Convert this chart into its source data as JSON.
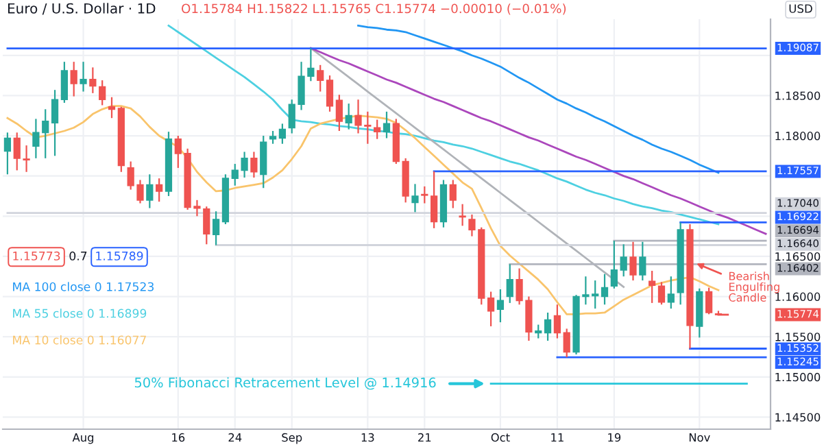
{
  "chart_data": {
    "type": "candlestick",
    "title": "Euro / U.S. Dollar · 1D",
    "categories": [
      null,
      null,
      null,
      null,
      null,
      null,
      null,
      null,
      "Aug",
      null,
      null,
      null,
      null,
      null,
      null,
      null,
      null,
      null,
      "16",
      null,
      null,
      null,
      null,
      null,
      "24",
      null,
      null,
      null,
      null,
      null,
      "Sep",
      null,
      null,
      null,
      null,
      null,
      null,
      null,
      "13",
      null,
      null,
      null,
      null,
      null,
      "21",
      null,
      null,
      null,
      null,
      null,
      null,
      null,
      "Oct",
      null,
      null,
      null,
      null,
      null,
      "11",
      null,
      null,
      null,
      null,
      null,
      "19",
      null,
      null,
      null,
      null,
      null,
      null,
      null,
      null,
      "Nov",
      null,
      null,
      null,
      null,
      null,
      null,
      null
    ],
    "ohlc": [
      [
        1.1781,
        1.1804,
        1.1752,
        1.1797
      ],
      [
        1.1797,
        1.1804,
        1.1757,
        1.1772
      ],
      [
        1.1771,
        1.1788,
        1.1755,
        1.177
      ],
      [
        1.1787,
        1.1821,
        1.1772,
        1.1804
      ],
      [
        1.1804,
        1.1833,
        1.1772,
        1.1818
      ],
      [
        1.1816,
        1.1857,
        1.1775,
        1.1845
      ],
      [
        1.1845,
        1.1892,
        1.1841,
        1.1881
      ],
      [
        1.1881,
        1.1892,
        1.1849,
        1.1865
      ],
      [
        1.1865,
        1.1892,
        1.1855,
        1.187
      ],
      [
        1.187,
        1.1885,
        1.1853,
        1.1862
      ],
      [
        1.1861,
        1.1869,
        1.1838,
        1.1845
      ],
      [
        1.1836,
        1.1848,
        1.1822,
        1.1833
      ],
      [
        1.1834,
        1.1836,
        1.1755,
        1.1763
      ],
      [
        1.176,
        1.1768,
        1.1733,
        1.1738
      ],
      [
        1.1739,
        1.1745,
        1.1716,
        1.172
      ],
      [
        1.172,
        1.1752,
        1.171,
        1.1739
      ],
      [
        1.1739,
        1.1747,
        1.1718,
        1.1731
      ],
      [
        1.1731,
        1.1805,
        1.1725,
        1.1796
      ],
      [
        1.1796,
        1.18,
        1.176,
        1.1778
      ],
      [
        1.1778,
        1.1784,
        1.1708,
        1.1711
      ],
      [
        1.1712,
        1.172,
        1.17,
        1.171
      ],
      [
        1.1709,
        1.1712,
        1.1665,
        1.1678
      ],
      [
        1.1677,
        1.1706,
        1.1664,
        1.1696
      ],
      [
        1.1693,
        1.1752,
        1.169,
        1.1747
      ],
      [
        1.1747,
        1.1765,
        1.1738,
        1.1757
      ],
      [
        1.1757,
        1.178,
        1.1748,
        1.1772
      ],
      [
        1.1772,
        1.178,
        1.1748,
        1.1755
      ],
      [
        1.1752,
        1.18,
        1.1735,
        1.1792
      ],
      [
        1.1796,
        1.1806,
        1.179,
        1.1799
      ],
      [
        1.1797,
        1.1815,
        1.179,
        1.1808
      ],
      [
        1.181,
        1.1845,
        1.1803,
        1.1839
      ],
      [
        1.1839,
        1.1892,
        1.1832,
        1.1874
      ],
      [
        1.1874,
        1.19087,
        1.1868,
        1.1884
      ],
      [
        1.1881,
        1.1888,
        1.1855,
        1.1869
      ],
      [
        1.1869,
        1.1875,
        1.183,
        1.1837
      ],
      [
        1.1844,
        1.1851,
        1.1806,
        1.1818
      ],
      [
        1.1816,
        1.184,
        1.1808,
        1.1825
      ],
      [
        1.1825,
        1.1845,
        1.1803,
        1.1813
      ],
      [
        1.1813,
        1.183,
        1.179,
        1.1812
      ],
      [
        1.181,
        1.182,
        1.1796,
        1.1805
      ],
      [
        1.1805,
        1.183,
        1.1797,
        1.1815
      ],
      [
        1.1815,
        1.1821,
        1.1765,
        1.1768
      ],
      [
        1.1768,
        1.1772,
        1.1717,
        1.1725
      ],
      [
        1.1717,
        1.174,
        1.1705,
        1.1725
      ],
      [
        1.1727,
        1.1737,
        1.1716,
        1.1726
      ],
      [
        1.1725,
        1.17557,
        1.1685,
        1.1693
      ],
      [
        1.1693,
        1.1745,
        1.1686,
        1.1739
      ],
      [
        1.1739,
        1.1745,
        1.171,
        1.172
      ],
      [
        1.17,
        1.1715,
        1.1688,
        1.1699
      ],
      [
        1.1696,
        1.1702,
        1.1675,
        1.1683
      ],
      [
        1.1683,
        1.1686,
        1.159,
        1.1598
      ],
      [
        1.1598,
        1.1606,
        1.1563,
        1.1582
      ],
      [
        1.1584,
        1.1609,
        1.1568,
        1.1595
      ],
      [
        1.16,
        1.16402,
        1.1592,
        1.1621
      ],
      [
        1.1621,
        1.1635,
        1.159,
        1.1595
      ],
      [
        1.1595,
        1.16,
        1.1545,
        1.1556
      ],
      [
        1.1555,
        1.1565,
        1.1548,
        1.1557
      ],
      [
        1.1555,
        1.158,
        1.1545,
        1.1571
      ],
      [
        1.1576,
        1.159,
        1.1548,
        1.1555
      ],
      [
        1.1555,
        1.156,
        1.15245,
        1.1531
      ],
      [
        1.1531,
        1.1602,
        1.1528,
        1.16
      ],
      [
        1.16,
        1.1625,
        1.159,
        1.1602
      ],
      [
        1.1601,
        1.162,
        1.1585,
        1.1603
      ],
      [
        1.16,
        1.1628,
        1.159,
        1.1611
      ],
      [
        1.1613,
        1.16694,
        1.161,
        1.1633
      ],
      [
        1.1633,
        1.1665,
        1.1625,
        1.1649
      ],
      [
        1.1649,
        1.1668,
        1.162,
        1.1627
      ],
      [
        1.1627,
        1.1668,
        1.162,
        1.1649
      ],
      [
        1.1619,
        1.1632,
        1.1592,
        1.1614
      ],
      [
        1.1613,
        1.1618,
        1.159,
        1.1593
      ],
      [
        1.1593,
        1.1625,
        1.1585,
        1.1603
      ],
      [
        1.1605,
        1.16922,
        1.159,
        1.1683
      ],
      [
        1.1683,
        1.169,
        1.15352,
        1.1564
      ],
      [
        1.1563,
        1.161,
        1.1549,
        1.1606
      ],
      [
        1.1606,
        1.1611,
        1.1578,
        1.158
      ],
      [
        1.15784,
        1.15822,
        1.15765,
        1.15774
      ],
      null,
      null,
      null,
      null,
      null
    ],
    "colors": [
      "#26a69a",
      "#ef5350",
      "#ef5350",
      "#26a69a",
      "#26a69a",
      "#26a69a",
      "#26a69a",
      "#ef5350",
      "#26a69a",
      "#ef5350",
      "#ef5350",
      "#ef5350",
      "#ef5350",
      "#ef5350",
      "#ef5350",
      "#26a69a",
      "#ef5350",
      "#26a69a",
      "#ef5350",
      "#ef5350",
      "#ef5350",
      "#ef5350",
      "#26a69a",
      "#26a69a",
      "#26a69a",
      "#26a69a",
      "#ef5350",
      "#26a69a",
      "#26a69a",
      "#26a69a",
      "#26a69a",
      "#26a69a",
      "#26a69a",
      "#ef5350",
      "#ef5350",
      "#ef5350",
      "#26a69a",
      "#ef5350",
      "#ef5350",
      "#ef5350",
      "#26a69a",
      "#ef5350",
      "#ef5350",
      "#26a69a",
      "#ef5350",
      "#ef5350",
      "#26a69a",
      "#ef5350",
      "#ef5350",
      "#ef5350",
      "#ef5350",
      "#ef5350",
      "#26a69a",
      "#26a69a",
      "#ef5350",
      "#ef5350",
      "#26a69a",
      "#26a69a",
      "#ef5350",
      "#ef5350",
      "#26a69a",
      "#26a69a",
      "#26a69a",
      "#26a69a",
      "#26a69a",
      "#26a69a",
      "#ef5350",
      "#26a69a",
      "#ef5350",
      "#ef5350",
      "#26a69a",
      "#26a69a",
      "#ef5350",
      "#26a69a",
      "#ef5350",
      "#ef5350",
      null,
      null,
      null,
      null,
      null
    ],
    "series": [
      {
        "type": "line",
        "name": "MA 100 close 0 1.17523",
        "color": "#2196f3",
        "values": [
          null,
          null,
          null,
          null,
          null,
          null,
          null,
          null,
          null,
          null,
          null,
          null,
          null,
          null,
          null,
          null,
          null,
          null,
          null,
          null,
          null,
          null,
          null,
          null,
          null,
          null,
          null,
          null,
          null,
          null,
          null,
          null,
          null,
          null,
          null,
          null,
          null,
          1.1937,
          1.1935,
          1.1934,
          1.1932,
          1.1931,
          1.1929,
          1.1925,
          1.1921,
          1.1917,
          1.1913,
          1.1909,
          1.1905,
          1.19,
          1.1896,
          1.1891,
          1.1886,
          1.1879,
          1.1872,
          1.1866,
          1.1859,
          1.1852,
          1.1845,
          1.184,
          1.1834,
          1.1829,
          1.1823,
          1.1818,
          1.1812,
          1.1806,
          1.18,
          1.1795,
          1.1789,
          1.1784,
          1.178,
          1.1775,
          1.177,
          1.1764,
          1.1759,
          1.1754,
          null,
          null,
          null,
          null,
          null
        ]
      },
      {
        "type": "line",
        "name": "MA 55 close 0 1.16899",
        "color": "#4dd0e1",
        "values": [
          null,
          null,
          null,
          null,
          null,
          null,
          null,
          null,
          null,
          null,
          null,
          null,
          null,
          null,
          null,
          null,
          null,
          1.1937,
          1.1929,
          1.1921,
          1.1913,
          1.1905,
          1.1897,
          1.1889,
          1.1881,
          1.1873,
          1.1864,
          1.1855,
          1.1845,
          1.1832,
          1.182,
          1.1818,
          1.1817,
          1.1815,
          1.1814,
          1.1812,
          1.1811,
          1.1809,
          1.1808,
          1.1806,
          1.1805,
          1.1803,
          1.1802,
          1.18,
          1.1797,
          1.1794,
          1.1792,
          1.1789,
          1.1787,
          1.1784,
          1.178,
          1.1776,
          1.1772,
          1.1768,
          1.1765,
          1.1761,
          1.1757,
          1.1752,
          1.1747,
          1.1743,
          1.1738,
          1.1733,
          1.1729,
          1.1726,
          1.1722,
          1.1719,
          1.1715,
          1.1712,
          1.171,
          1.1707,
          1.1705,
          1.1702,
          1.1699,
          1.1696,
          1.1693,
          1.169,
          null,
          null,
          null,
          null,
          null
        ]
      },
      {
        "type": "line",
        "name": "MA 10 close 0 1.16077",
        "color": "#f9c46b",
        "values": [
          1.1822,
          1.1815,
          1.1806,
          1.1798,
          1.18,
          1.1803,
          1.1806,
          1.181,
          1.1817,
          1.1827,
          1.1833,
          1.1837,
          1.1837,
          1.1834,
          1.1824,
          1.1811,
          1.18,
          1.1793,
          1.1786,
          1.1772,
          1.1755,
          1.1742,
          1.1731,
          1.1732,
          1.1735,
          1.1737,
          1.1739,
          1.1741,
          1.1748,
          1.1757,
          1.1771,
          1.1787,
          1.1809,
          1.1815,
          1.1818,
          1.1821,
          1.1823,
          1.1825,
          1.1824,
          1.1823,
          1.1821,
          1.1816,
          1.1807,
          1.1797,
          1.1786,
          1.1775,
          1.1764,
          1.1753,
          1.1742,
          1.1734,
          1.171,
          1.1685,
          1.1663,
          1.1651,
          1.1641,
          1.1631,
          1.1621,
          1.1609,
          1.1593,
          1.1578,
          1.1578,
          1.1579,
          1.1579,
          1.158,
          1.1588,
          1.1596,
          1.1602,
          1.1608,
          1.1614,
          1.1617,
          1.162,
          1.1622,
          1.1624,
          1.1619,
          1.1613,
          1.1608,
          null,
          null,
          null,
          null,
          null
        ]
      },
      {
        "type": "line",
        "color": "#b0b3b8",
        "values": [
          null,
          null,
          null,
          null,
          null,
          null,
          null,
          null,
          null,
          null,
          null,
          null,
          null,
          null,
          null,
          null,
          null,
          null,
          null,
          null,
          null,
          null,
          null,
          null,
          null,
          null,
          null,
          null,
          null,
          null,
          null,
          null,
          1.1909,
          1.19,
          1.1891,
          1.1882,
          1.1873,
          1.1864,
          1.1855,
          1.1846,
          1.1837,
          1.1828,
          1.1819,
          1.181,
          1.1801,
          1.1792,
          1.1783,
          1.1774,
          1.1765,
          1.1756,
          1.1747,
          1.1738,
          1.1729,
          1.172,
          1.1711,
          1.1702,
          1.1693,
          1.1684,
          1.1675,
          1.1666,
          1.1657,
          1.1648,
          1.1639,
          1.163,
          1.1621,
          1.1612,
          null,
          null,
          null,
          null,
          null,
          null,
          null,
          null,
          null,
          null,
          null,
          null,
          null,
          null,
          null
        ]
      },
      {
        "type": "line",
        "color": "#ab47bc",
        "values": [
          null,
          null,
          null,
          null,
          null,
          null,
          null,
          null,
          null,
          null,
          null,
          null,
          null,
          null,
          null,
          null,
          null,
          null,
          null,
          null,
          null,
          null,
          null,
          null,
          null,
          null,
          null,
          null,
          null,
          null,
          null,
          null,
          1.1909,
          1.1904,
          1.1899,
          1.1894,
          1.189,
          1.1885,
          1.188,
          1.1875,
          1.187,
          1.1866,
          1.1861,
          1.1856,
          1.1851,
          1.1846,
          1.1842,
          1.1837,
          1.1832,
          1.1827,
          1.1822,
          1.1818,
          1.1813,
          1.1808,
          1.1803,
          1.1798,
          1.1794,
          1.1789,
          1.1784,
          1.1779,
          1.1774,
          1.177,
          1.1765,
          1.176,
          1.1755,
          1.175,
          1.1746,
          1.1741,
          1.1736,
          1.1731,
          1.1726,
          1.1722,
          1.1717,
          1.1712,
          1.1707,
          1.1702,
          1.1698,
          1.1693,
          1.1688,
          1.1683,
          1.1678
        ]
      },
      {
        "type": "line",
        "color": "#2962ff",
        "values": [
          1.19087,
          1.19087,
          1.19087,
          1.19087,
          1.19087,
          1.19087,
          1.19087,
          1.19087,
          1.19087,
          1.19087,
          1.19087,
          1.19087,
          1.19087,
          1.19087,
          1.19087,
          1.19087,
          1.19087,
          1.19087,
          1.19087,
          1.19087,
          1.19087,
          1.19087,
          1.19087,
          1.19087,
          1.19087,
          1.19087,
          1.19087,
          1.19087,
          1.19087,
          1.19087,
          1.19087,
          1.19087,
          1.19087,
          1.19087,
          1.19087,
          1.19087,
          1.19087,
          1.19087,
          1.19087,
          1.19087,
          1.19087,
          1.19087,
          1.19087,
          1.19087,
          1.19087,
          1.19087,
          1.19087,
          1.19087,
          1.19087,
          1.19087,
          1.19087,
          1.19087,
          1.19087,
          1.19087,
          1.19087,
          1.19087,
          1.19087,
          1.19087,
          1.19087,
          1.19087,
          1.19087,
          1.19087,
          1.19087,
          1.19087,
          1.19087,
          1.19087,
          1.19087,
          1.19087,
          1.19087,
          1.19087,
          1.19087,
          1.19087,
          1.19087,
          1.19087,
          1.19087,
          1.19087,
          1.19087,
          1.19087,
          1.19087,
          1.19087,
          1.19087
        ]
      },
      {
        "type": "line",
        "color": "#2962ff",
        "values": [
          null,
          null,
          null,
          null,
          null,
          null,
          null,
          null,
          null,
          null,
          null,
          null,
          null,
          null,
          null,
          null,
          null,
          null,
          null,
          null,
          null,
          null,
          null,
          null,
          null,
          null,
          null,
          null,
          null,
          null,
          null,
          null,
          null,
          null,
          null,
          null,
          null,
          null,
          null,
          null,
          null,
          null,
          null,
          null,
          null,
          1.17557,
          1.17557,
          1.17557,
          1.17557,
          1.17557,
          1.17557,
          1.17557,
          1.17557,
          1.17557,
          1.17557,
          1.17557,
          1.17557,
          1.17557,
          1.17557,
          1.17557,
          1.17557,
          1.17557,
          1.17557,
          1.17557,
          1.17557,
          1.17557,
          1.17557,
          1.17557,
          1.17557,
          1.17557,
          1.17557,
          1.17557,
          1.17557,
          1.17557,
          1.17557,
          1.17557,
          1.17557,
          1.17557,
          1.17557,
          1.17557,
          1.17557
        ]
      },
      {
        "type": "line",
        "color": "#d1d4dc",
        "values": [
          1.1704,
          1.1704,
          1.1704,
          1.1704,
          1.1704,
          1.1704,
          1.1704,
          1.1704,
          1.1704,
          1.1704,
          1.1704,
          1.1704,
          1.1704,
          1.1704,
          1.1704,
          1.1704,
          1.1704,
          1.1704,
          1.1704,
          1.1704,
          1.1704,
          1.1704,
          1.1704,
          1.1704,
          1.1704,
          1.1704,
          1.1704,
          1.1704,
          1.1704,
          1.1704,
          1.1704,
          1.1704,
          1.1704,
          1.1704,
          1.1704,
          1.1704,
          1.1704,
          1.1704,
          1.1704,
          1.1704,
          1.1704,
          1.1704,
          1.1704,
          1.1704,
          1.1704,
          1.1704,
          1.1704,
          1.1704,
          1.1704,
          1.1704,
          1.1704,
          1.1704,
          1.1704,
          1.1704,
          1.1704,
          1.1704,
          1.1704,
          1.1704,
          1.1704,
          1.1704,
          1.1704,
          1.1704,
          1.1704,
          1.1704,
          1.1704,
          1.1704,
          1.1704,
          1.1704,
          1.1704,
          1.1704,
          1.1704,
          1.1704,
          1.1704,
          1.1704,
          1.1704,
          1.1704,
          1.1704,
          1.1704,
          1.1704,
          1.1704,
          1.1704
        ]
      },
      {
        "type": "line",
        "color": "#2962ff",
        "values": [
          null,
          null,
          null,
          null,
          null,
          null,
          null,
          null,
          null,
          null,
          null,
          null,
          null,
          null,
          null,
          null,
          null,
          null,
          null,
          null,
          null,
          null,
          null,
          null,
          null,
          null,
          null,
          null,
          null,
          null,
          null,
          null,
          null,
          null,
          null,
          null,
          null,
          null,
          null,
          null,
          null,
          null,
          null,
          null,
          null,
          null,
          null,
          null,
          null,
          null,
          null,
          null,
          null,
          null,
          null,
          null,
          null,
          null,
          null,
          null,
          null,
          null,
          null,
          null,
          null,
          null,
          null,
          null,
          null,
          null,
          null,
          1.16922,
          1.16922,
          1.16922,
          1.16922,
          1.16922,
          1.16922,
          1.16922,
          1.16922,
          1.16922,
          1.16922
        ]
      },
      {
        "type": "line",
        "color": "#b2b5be",
        "values": [
          null,
          null,
          null,
          null,
          null,
          null,
          null,
          null,
          null,
          null,
          null,
          null,
          null,
          null,
          null,
          null,
          null,
          null,
          null,
          null,
          null,
          null,
          null,
          null,
          null,
          null,
          null,
          null,
          null,
          null,
          null,
          null,
          null,
          null,
          null,
          null,
          null,
          null,
          null,
          null,
          null,
          null,
          null,
          null,
          null,
          null,
          null,
          null,
          null,
          null,
          null,
          null,
          null,
          null,
          null,
          null,
          null,
          null,
          null,
          null,
          null,
          null,
          null,
          null,
          1.16694,
          1.16694,
          1.16694,
          1.16694,
          1.16694,
          1.16694,
          1.16694,
          1.16694,
          1.16694,
          1.16694,
          1.16694,
          1.16694,
          1.16694,
          1.16694,
          1.16694,
          1.16694,
          1.16694
        ]
      },
      {
        "type": "line",
        "color": "#d1d4dc",
        "values": [
          null,
          null,
          null,
          null,
          null,
          null,
          null,
          null,
          null,
          null,
          null,
          null,
          null,
          null,
          null,
          null,
          null,
          null,
          null,
          null,
          null,
          null,
          1.1664,
          1.1664,
          1.1664,
          1.1664,
          1.1664,
          1.1664,
          1.1664,
          1.1664,
          1.1664,
          1.1664,
          1.1664,
          1.1664,
          1.1664,
          1.1664,
          1.1664,
          1.1664,
          1.1664,
          1.1664,
          1.1664,
          1.1664,
          1.1664,
          1.1664,
          1.1664,
          1.1664,
          1.1664,
          1.1664,
          1.1664,
          1.1664,
          1.1664,
          1.1664,
          1.1664,
          1.1664,
          1.1664,
          1.1664,
          1.1664,
          1.1664,
          1.1664,
          1.1664,
          1.1664,
          1.1664,
          1.1664,
          1.1664,
          1.1664,
          1.1664,
          1.1664,
          1.1664,
          1.1664,
          1.1664,
          1.1664,
          1.1664,
          1.1664,
          1.1664,
          1.1664,
          1.1664,
          1.1664,
          1.1664,
          1.1664,
          1.1664,
          1.1664
        ]
      },
      {
        "type": "line",
        "color": "#b2b5be",
        "values": [
          null,
          null,
          null,
          null,
          null,
          null,
          null,
          null,
          null,
          null,
          null,
          null,
          null,
          null,
          null,
          null,
          null,
          null,
          null,
          null,
          null,
          null,
          null,
          null,
          null,
          null,
          null,
          null,
          null,
          null,
          null,
          null,
          null,
          null,
          null,
          null,
          null,
          null,
          null,
          null,
          null,
          null,
          null,
          null,
          null,
          null,
          null,
          null,
          null,
          null,
          null,
          null,
          null,
          1.16402,
          1.16402,
          1.16402,
          1.16402,
          1.16402,
          1.16402,
          1.16402,
          1.16402,
          1.16402,
          1.16402,
          1.16402,
          1.16402,
          1.16402,
          1.16402,
          1.16402,
          1.16402,
          1.16402,
          1.16402,
          1.16402,
          1.16402,
          1.16402,
          1.16402,
          1.16402,
          1.16402,
          1.16402,
          1.16402,
          1.16402,
          1.16402
        ]
      },
      {
        "type": "line",
        "color": "#ef5350",
        "values": [
          null,
          null,
          null,
          null,
          null,
          null,
          null,
          null,
          null,
          null,
          null,
          null,
          null,
          null,
          null,
          null,
          null,
          null,
          null,
          null,
          null,
          null,
          null,
          null,
          null,
          null,
          null,
          null,
          null,
          null,
          null,
          null,
          null,
          null,
          null,
          null,
          null,
          null,
          null,
          null,
          null,
          null,
          null,
          null,
          null,
          null,
          null,
          null,
          null,
          null,
          null,
          null,
          null,
          null,
          null,
          null,
          null,
          null,
          null,
          null,
          null,
          null,
          null,
          null,
          null,
          null,
          null,
          null,
          null,
          null,
          null,
          null,
          null,
          null,
          null,
          1.15774,
          1.15774,
          null,
          null,
          null,
          null
        ]
      },
      {
        "type": "line",
        "color": "#2962ff",
        "values": [
          null,
          null,
          null,
          null,
          null,
          null,
          null,
          null,
          null,
          null,
          null,
          null,
          null,
          null,
          null,
          null,
          null,
          null,
          null,
          null,
          null,
          null,
          null,
          null,
          null,
          null,
          null,
          null,
          null,
          null,
          null,
          null,
          null,
          null,
          null,
          null,
          null,
          null,
          null,
          null,
          null,
          null,
          null,
          null,
          null,
          null,
          null,
          null,
          null,
          null,
          null,
          null,
          null,
          null,
          null,
          null,
          null,
          null,
          null,
          null,
          null,
          null,
          null,
          null,
          null,
          null,
          null,
          null,
          null,
          null,
          null,
          null,
          1.15352,
          1.15352,
          1.15352,
          1.15352,
          1.15352,
          1.15352,
          1.15352,
          1.15352,
          1.15352
        ]
      },
      {
        "type": "line",
        "color": "#2962ff",
        "values": [
          null,
          null,
          null,
          null,
          null,
          null,
          null,
          null,
          null,
          null,
          null,
          null,
          null,
          null,
          null,
          null,
          null,
          null,
          null,
          null,
          null,
          null,
          null,
          null,
          null,
          null,
          null,
          null,
          null,
          null,
          null,
          null,
          null,
          null,
          null,
          null,
          null,
          null,
          null,
          null,
          null,
          null,
          null,
          null,
          null,
          null,
          null,
          null,
          null,
          null,
          null,
          null,
          null,
          null,
          null,
          null,
          null,
          null,
          1.15245,
          1.15245,
          1.15245,
          1.15245,
          1.15245,
          1.15245,
          1.15245,
          1.15245,
          1.15245,
          1.15245,
          1.15245,
          1.15245,
          1.15245,
          1.15245,
          1.15245,
          1.15245,
          1.15245,
          1.15245,
          1.15245,
          1.15245,
          1.15245,
          1.15245,
          1.15245
        ]
      },
      {
        "type": "line",
        "color": "#26c6da",
        "values": [
          null,
          null,
          null,
          null,
          null,
          null,
          null,
          null,
          null,
          null,
          null,
          null,
          null,
          null,
          null,
          null,
          null,
          null,
          null,
          null,
          null,
          null,
          null,
          null,
          null,
          null,
          null,
          null,
          null,
          null,
          null,
          null,
          null,
          null,
          null,
          null,
          null,
          null,
          null,
          null,
          null,
          null,
          null,
          null,
          null,
          null,
          null,
          null,
          null,
          null,
          null,
          1.14916,
          1.14916,
          1.14916,
          1.14916,
          1.14916,
          1.14916,
          1.14916,
          1.14916,
          1.14916,
          1.14916,
          1.14916,
          1.14916,
          1.14916,
          1.14916,
          1.14916,
          1.14916,
          1.14916,
          1.14916,
          1.14916,
          1.14916,
          1.14916,
          1.14916,
          1.14916,
          1.14916,
          1.14916,
          1.14916,
          1.14916,
          1.14916,
          null,
          null
        ]
      }
    ],
    "annotations": [
      "O1.15784 H1.15822 L1.15765 C1.15774 −0.00010 (−0.01%)",
      "1.15773",
      "0.7",
      "1.15789",
      "USD",
      "Bearish\nEngulfing\nCandle",
      "50% Fibonacci Retracement Level @ 1.14916",
      "1.19087",
      "1.17557",
      "1.17040",
      "1.16922",
      "1.16694",
      "1.16640",
      "1.16402",
      "1.15774",
      "1.15352",
      "1.15245"
    ],
    "ylim": [
      1.1435,
      1.1945
    ],
    "yticks": [
      {
        "value": 1.145,
        "label": "1.14500"
      },
      {
        "value": 1.15,
        "label": "1.15000"
      },
      {
        "value": 1.155,
        "label": "1.15500"
      },
      {
        "value": 1.16,
        "label": "1.16000"
      },
      {
        "value": 1.165,
        "label": "1.16500"
      },
      {
        "value": 1.17,
        "label": null
      },
      {
        "value": 1.175,
        "label": null
      },
      {
        "value": 1.18,
        "label": "1.18000"
      },
      {
        "value": 1.185,
        "label": "1.18500"
      },
      {
        "value": 1.19,
        "label": null
      }
    ],
    "grid": true
  }
}
